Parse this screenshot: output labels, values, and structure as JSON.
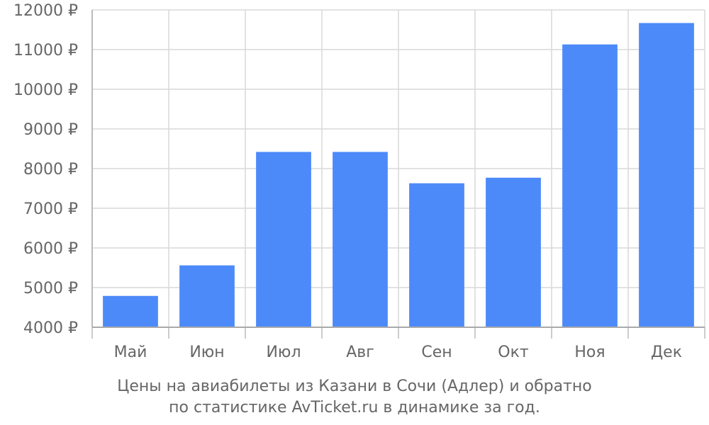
{
  "chart_data": {
    "type": "bar",
    "categories": [
      "Май",
      "Июн",
      "Июл",
      "Авг",
      "Сен",
      "Окт",
      "Ноя",
      "Дек"
    ],
    "values": [
      4790,
      5560,
      8420,
      8420,
      7630,
      7770,
      11130,
      11670
    ],
    "ylim": [
      4000,
      12000
    ],
    "yticks": [
      4000,
      5000,
      6000,
      7000,
      8000,
      9000,
      10000,
      11000,
      12000
    ],
    "ytick_labels": [
      "4000 ₽",
      "5000 ₽",
      "6000 ₽",
      "7000 ₽",
      "8000 ₽",
      "9000 ₽",
      "10000 ₽",
      "11000 ₽",
      "12000 ₽"
    ],
    "grid": true,
    "bar_color": "#4d8af9",
    "grid_color": "#d9d9d9",
    "text_color": "#666666"
  },
  "caption": {
    "line1": "Цены на авиабилеты из Казани в Сочи (Адлер) и обратно",
    "line2": "по статистике AvTicket.ru в динамике за год."
  }
}
